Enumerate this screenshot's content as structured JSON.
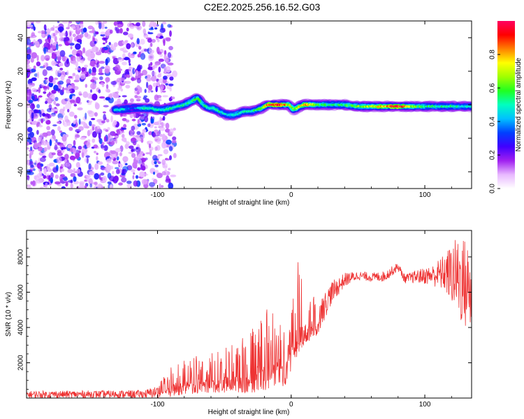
{
  "title": "C2E2.2025.256.16.52.G03",
  "chart_data": [
    {
      "type": "heatmap",
      "name": "spectrogram",
      "xlabel": "Height of straight line (km)",
      "ylabel": "Frequency (Hz)",
      "xlim": [
        -198,
        135
      ],
      "ylim": [
        -50,
        50
      ],
      "xticks": [
        -100,
        0,
        100
      ],
      "xtick_labels": [
        "-100",
        "0",
        "100"
      ],
      "yticks": [
        -40,
        -20,
        0,
        20,
        40
      ],
      "ytick_labels": [
        "-40",
        "-20",
        "0",
        "20",
        "40"
      ],
      "colorbar": {
        "label": "Normalized spectral amplitude",
        "range": [
          0,
          1
        ],
        "ticks": [
          0,
          0.2,
          0.4,
          0.6,
          0.8
        ],
        "tick_labels": [
          "0.0",
          "0.2",
          "0.4",
          "0.6",
          "0.8"
        ],
        "colormap": [
          "#ffffff",
          "#e8b8ff",
          "#a020f0",
          "#4000ff",
          "#0040ff",
          "#00c0ff",
          "#00ffc0",
          "#20ff20",
          "#a0ff00",
          "#ffff00",
          "#ff8000",
          "#ff0000",
          "#ff0060"
        ]
      },
      "noise_region_x": [
        -198,
        -100
      ],
      "ridge": [
        {
          "x": -132,
          "y": -3,
          "a": 0.45
        },
        {
          "x": -128,
          "y": -3,
          "a": 0.5
        },
        {
          "x": -118,
          "y": -2,
          "a": 0.3
        },
        {
          "x": -112,
          "y": -2,
          "a": 0.5
        },
        {
          "x": -106,
          "y": -2,
          "a": 0.5
        },
        {
          "x": -100,
          "y": -3,
          "a": 0.45
        },
        {
          "x": -95,
          "y": -3,
          "a": 0.5
        },
        {
          "x": -90,
          "y": -2,
          "a": 0.5
        },
        {
          "x": -85,
          "y": -1,
          "a": 0.5
        },
        {
          "x": -80,
          "y": 0,
          "a": 0.5
        },
        {
          "x": -75,
          "y": 2,
          "a": 0.55
        },
        {
          "x": -70,
          "y": 4,
          "a": 0.55
        },
        {
          "x": -66,
          "y": 0,
          "a": 0.5
        },
        {
          "x": -62,
          "y": -2,
          "a": 0.5
        },
        {
          "x": -58,
          "y": -2,
          "a": 0.5
        },
        {
          "x": -54,
          "y": -4,
          "a": 0.5
        },
        {
          "x": -48,
          "y": -6,
          "a": 0.45
        },
        {
          "x": -42,
          "y": -6,
          "a": 0.5
        },
        {
          "x": -36,
          "y": -4,
          "a": 0.5
        },
        {
          "x": -30,
          "y": -4,
          "a": 0.5
        },
        {
          "x": -26,
          "y": -3,
          "a": 0.55
        },
        {
          "x": -22,
          "y": -2,
          "a": 0.6
        },
        {
          "x": -18,
          "y": 0,
          "a": 0.85
        },
        {
          "x": -14,
          "y": 0,
          "a": 0.9
        },
        {
          "x": -10,
          "y": 0,
          "a": 0.9
        },
        {
          "x": -6,
          "y": 0,
          "a": 0.85
        },
        {
          "x": -2,
          "y": 0,
          "a": 0.7
        },
        {
          "x": 2,
          "y": -3,
          "a": 0.6
        },
        {
          "x": 6,
          "y": -1,
          "a": 0.7
        },
        {
          "x": 10,
          "y": 0,
          "a": 0.8
        },
        {
          "x": 20,
          "y": 0,
          "a": 0.6
        },
        {
          "x": 30,
          "y": 0,
          "a": 0.5
        },
        {
          "x": 40,
          "y": 0,
          "a": 0.55
        },
        {
          "x": 50,
          "y": -1,
          "a": 0.6
        },
        {
          "x": 60,
          "y": -1,
          "a": 0.7
        },
        {
          "x": 70,
          "y": -1,
          "a": 0.8
        },
        {
          "x": 80,
          "y": -1,
          "a": 0.95
        },
        {
          "x": 90,
          "y": -1,
          "a": 0.65
        },
        {
          "x": 100,
          "y": -1,
          "a": 0.55
        },
        {
          "x": 110,
          "y": -1,
          "a": 0.5
        },
        {
          "x": 120,
          "y": -1,
          "a": 0.5
        },
        {
          "x": 130,
          "y": -1,
          "a": 0.45
        }
      ]
    },
    {
      "type": "line",
      "name": "snr",
      "xlabel": "Height of straight line (km)",
      "ylabel": "SNR (10 * v/v)",
      "xlim": [
        -198,
        135
      ],
      "ylim": [
        0,
        9500
      ],
      "xticks": [
        -100,
        0,
        100
      ],
      "xtick_labels": [
        "-100",
        "0",
        "100"
      ],
      "yticks": [
        2000,
        4000,
        6000,
        8000
      ],
      "ytick_labels": [
        "2000",
        "4000",
        "6000",
        "8000"
      ],
      "color": "#ee3333",
      "envelope": [
        {
          "x": -198,
          "lo": 0,
          "hi": 400
        },
        {
          "x": -110,
          "lo": 0,
          "hi": 450
        },
        {
          "x": -100,
          "lo": 0,
          "hi": 700
        },
        {
          "x": -90,
          "lo": 50,
          "hi": 1800
        },
        {
          "x": -80,
          "lo": 200,
          "hi": 2200
        },
        {
          "x": -60,
          "lo": 300,
          "hi": 2600
        },
        {
          "x": -40,
          "lo": 300,
          "hi": 3200
        },
        {
          "x": -25,
          "lo": 300,
          "hi": 4200
        },
        {
          "x": -15,
          "lo": 400,
          "hi": 5400
        },
        {
          "x": -5,
          "lo": 600,
          "hi": 4300
        },
        {
          "x": 0,
          "lo": 1500,
          "hi": 5000
        },
        {
          "x": 5,
          "lo": 2500,
          "hi": 7800
        },
        {
          "x": 10,
          "lo": 3000,
          "hi": 6500
        },
        {
          "x": 20,
          "lo": 3600,
          "hi": 5400
        },
        {
          "x": 30,
          "lo": 5300,
          "hi": 6600
        },
        {
          "x": 40,
          "lo": 6300,
          "hi": 7100
        },
        {
          "x": 50,
          "lo": 6700,
          "hi": 7200
        },
        {
          "x": 60,
          "lo": 6600,
          "hi": 7100
        },
        {
          "x": 70,
          "lo": 6600,
          "hi": 7200
        },
        {
          "x": 80,
          "lo": 7200,
          "hi": 7700
        },
        {
          "x": 85,
          "lo": 6500,
          "hi": 7000
        },
        {
          "x": 95,
          "lo": 6500,
          "hi": 7300
        },
        {
          "x": 105,
          "lo": 6400,
          "hi": 7500
        },
        {
          "x": 115,
          "lo": 6000,
          "hi": 8200
        },
        {
          "x": 122,
          "lo": 5000,
          "hi": 9000
        },
        {
          "x": 128,
          "lo": 4000,
          "hi": 9300
        },
        {
          "x": 135,
          "lo": 3500,
          "hi": 8500
        }
      ]
    }
  ]
}
